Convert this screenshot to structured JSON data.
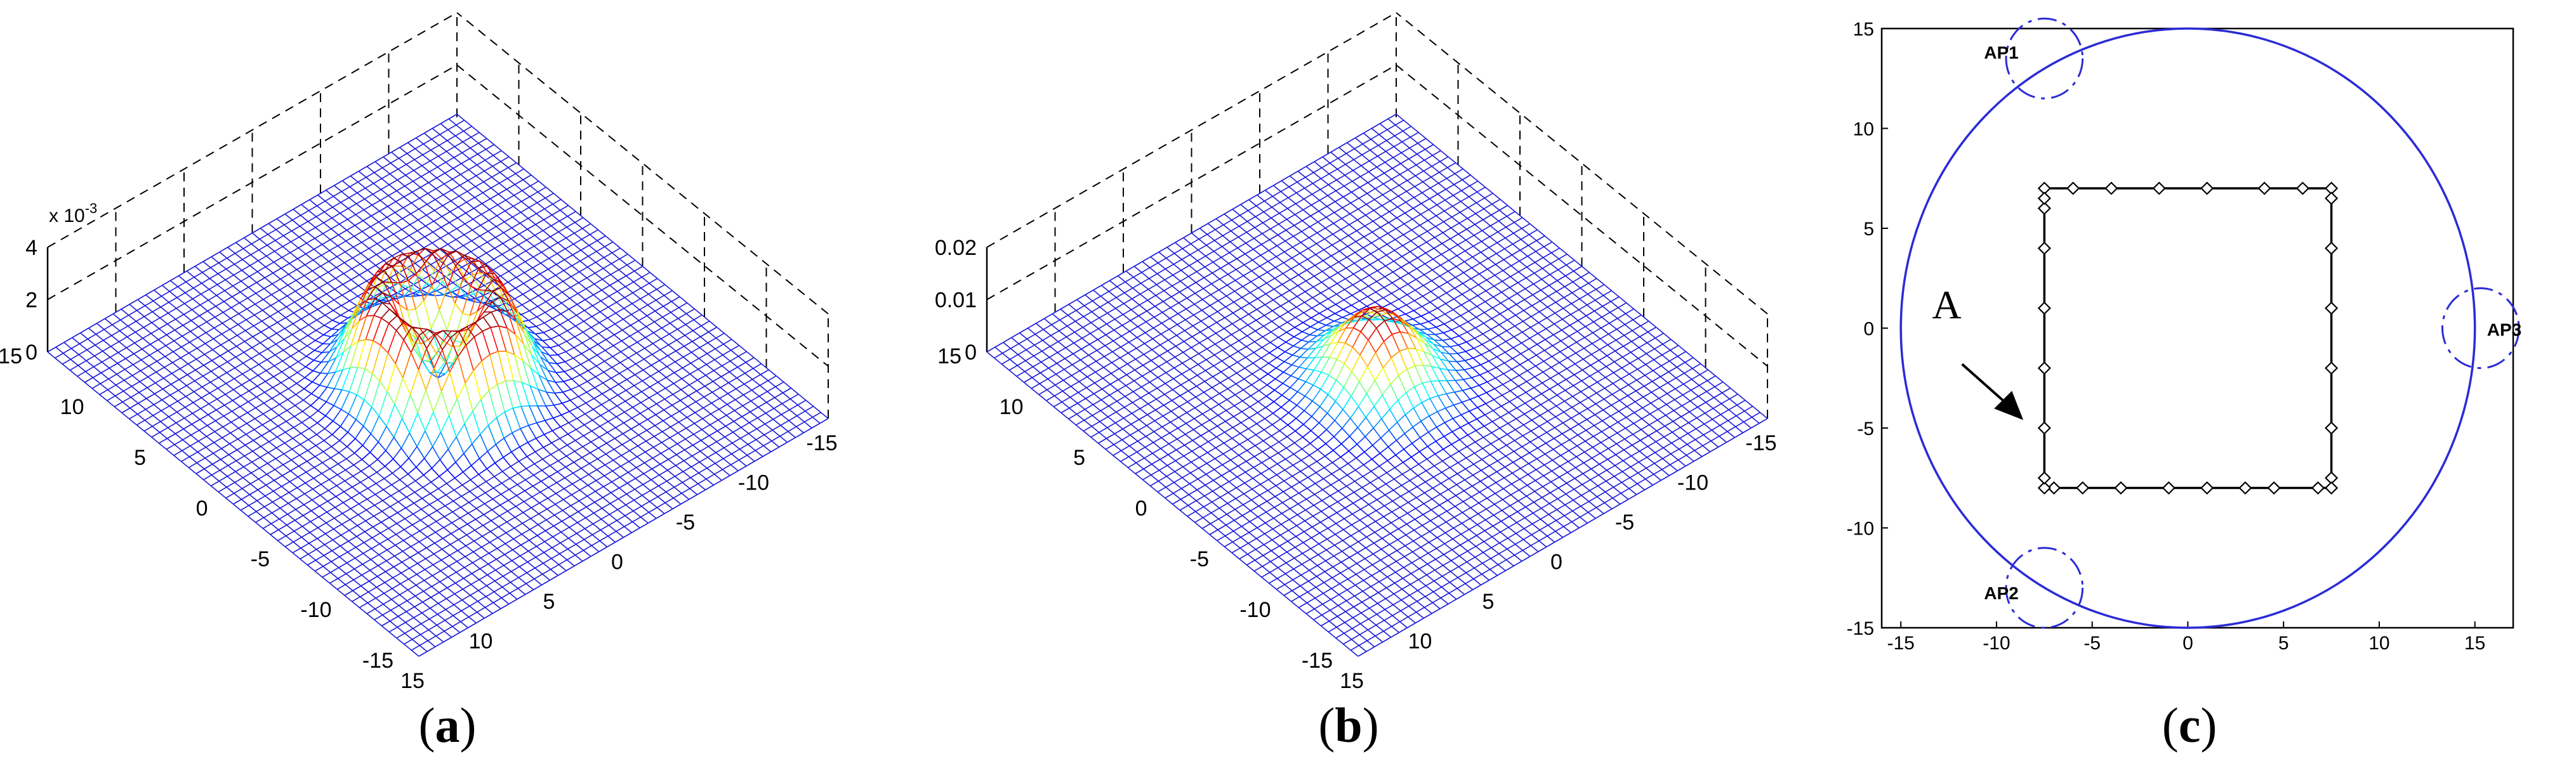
{
  "captions": [
    {
      "open": "(",
      "letter": "a",
      "close": ")"
    },
    {
      "open": "(",
      "letter": "b",
      "close": ")"
    },
    {
      "open": "(",
      "letter": "c",
      "close": ")"
    }
  ],
  "chart_data": [
    {
      "type": "surface",
      "x_ticks": [
        "15",
        "10",
        "5",
        "0",
        "-5",
        "-10",
        "-15"
      ],
      "y_ticks": [
        "15",
        "10",
        "5",
        "0",
        "-5",
        "-10",
        "-15"
      ],
      "z_ticks": [
        "4",
        "2",
        "0"
      ],
      "z_multiplier": "x 10",
      "z_exponent": "-3",
      "xlim": [
        -15,
        15
      ],
      "ylim": [
        -15,
        15
      ],
      "zlim": [
        0,
        0.004
      ],
      "shape": "ring",
      "peak": 0.0036,
      "ring_radius": 3.2,
      "ring_width": 2.0,
      "center_value": 0.0025,
      "colormap": "jet",
      "grid": true
    },
    {
      "type": "surface",
      "x_ticks": [
        "15",
        "10",
        "5",
        "0",
        "-5",
        "-10",
        "-15"
      ],
      "y_ticks": [
        "15",
        "10",
        "5",
        "0",
        "-5",
        "-10",
        "-15"
      ],
      "z_ticks": [
        "0.02",
        "0.01",
        "0"
      ],
      "xlim": [
        -15,
        15
      ],
      "ylim": [
        -15,
        15
      ],
      "zlim": [
        0,
        0.02
      ],
      "shape": "gaussian",
      "peak": 0.014,
      "sigma": 2.2,
      "colormap": "jet",
      "grid": true
    },
    {
      "type": "scatter",
      "x_ticks": [
        "-15",
        "-10",
        "-5",
        "0",
        "5",
        "10",
        "15"
      ],
      "y_ticks": [
        "15",
        "10",
        "5",
        "0",
        "-5",
        "-10",
        "-15"
      ],
      "xlim": [
        -16,
        17
      ],
      "ylim": [
        -15,
        15
      ],
      "coverage_circle": {
        "cx": 0,
        "cy": 0,
        "r": 15,
        "color": "#2b2bd6"
      },
      "access_points": [
        {
          "label": "AP1",
          "x": -7.5,
          "y": 13.5,
          "r": 2
        },
        {
          "label": "AP2",
          "x": -7.5,
          "y": -13,
          "r": 2
        },
        {
          "label": "AP3",
          "x": 15.3,
          "y": 0,
          "r": 2
        }
      ],
      "path": {
        "x_min": -7.5,
        "x_max": 7.5,
        "y_min": -8,
        "y_max": 7,
        "points": [
          [
            -7.5,
            7
          ],
          [
            -6,
            7
          ],
          [
            -4,
            7
          ],
          [
            -1.5,
            7
          ],
          [
            1,
            7
          ],
          [
            4,
            7
          ],
          [
            6,
            7
          ],
          [
            7.5,
            7
          ],
          [
            7.5,
            6.5
          ],
          [
            7.5,
            4
          ],
          [
            7.5,
            1
          ],
          [
            7.5,
            -2
          ],
          [
            7.5,
            -5
          ],
          [
            7.5,
            -7.5
          ],
          [
            7.5,
            -8
          ],
          [
            6.8,
            -8
          ],
          [
            4.5,
            -8
          ],
          [
            3,
            -8
          ],
          [
            1,
            -8
          ],
          [
            -1,
            -8
          ],
          [
            -3.5,
            -8
          ],
          [
            -5.5,
            -8
          ],
          [
            -7,
            -8
          ],
          [
            -7.5,
            -8
          ],
          [
            -7.5,
            -7.5
          ],
          [
            -7.5,
            -5
          ],
          [
            -7.5,
            -2
          ],
          [
            -7.5,
            1
          ],
          [
            -7.5,
            4
          ],
          [
            -7.5,
            6
          ],
          [
            -7.5,
            6.5
          ]
        ]
      },
      "annotation": {
        "label": "A"
      }
    }
  ]
}
